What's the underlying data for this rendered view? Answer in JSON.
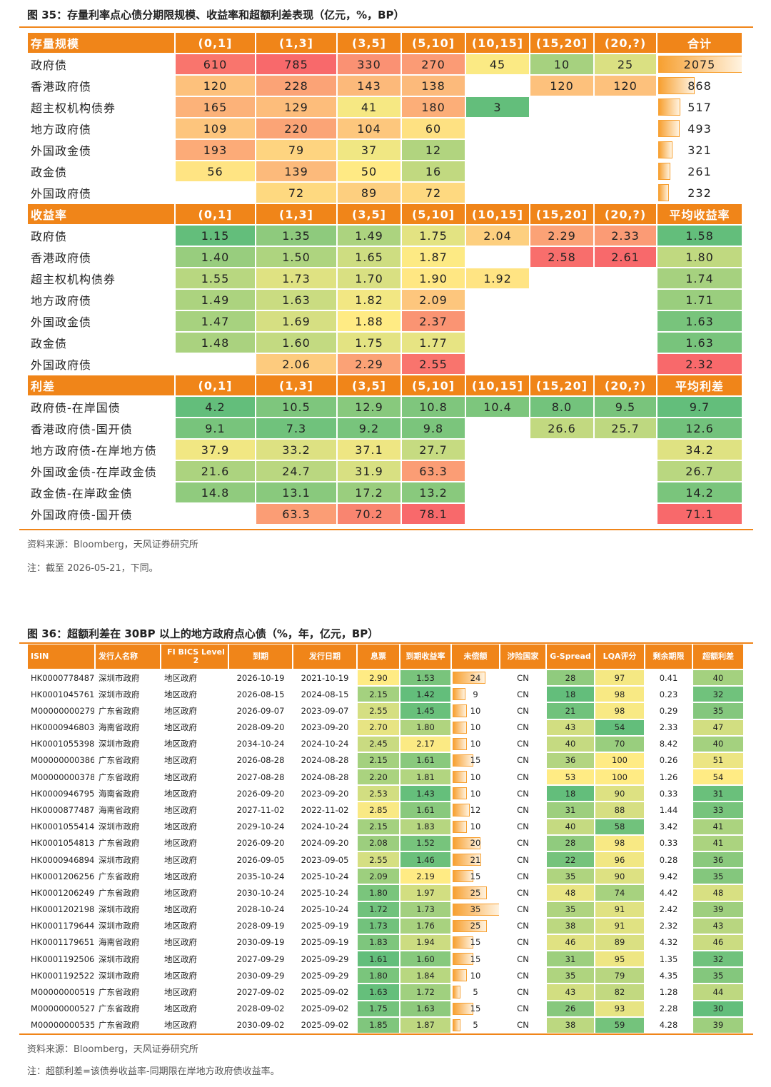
{
  "fig35": {
    "title": "图 35：存量利率点心债分期限规模、收益率和超额利差表现（亿元，%，BP）",
    "heat_colors": [
      "#63be7b",
      "#ffeb84",
      "#f8696b"
    ],
    "sections": [
      {
        "scale": "log",
        "total_style": "bar",
        "header": [
          "存量规模",
          "(0,1]",
          "(1,3]",
          "(3,5]",
          "(5,10]",
          "(10,15]",
          "(15,20]",
          "(20,?)",
          "合计"
        ],
        "rows": [
          [
            "政府债",
            "610",
            "785",
            "330",
            "270",
            "45",
            "10",
            "25",
            "2075"
          ],
          [
            "香港政府债",
            "120",
            "228",
            "143",
            "138",
            null,
            "120",
            "120",
            "868"
          ],
          [
            "超主权机构债券",
            "165",
            "129",
            "41",
            "180",
            "3",
            null,
            null,
            "517"
          ],
          [
            "地方政府债",
            "109",
            "220",
            "104",
            "60",
            null,
            null,
            null,
            "493"
          ],
          [
            "外国政金债",
            "193",
            "79",
            "37",
            "12",
            null,
            null,
            null,
            "321"
          ],
          [
            "政金债",
            "56",
            "139",
            "50",
            "16",
            null,
            null,
            null,
            "261"
          ],
          [
            "外国政府债",
            null,
            "72",
            "89",
            "72",
            null,
            null,
            null,
            "232"
          ]
        ]
      },
      {
        "scale": "linear",
        "total_style": "heat",
        "header": [
          "收益率",
          "(0,1]",
          "(1,3]",
          "(3,5]",
          "(5,10]",
          "(10,15]",
          "(15,20]",
          "(20,?)",
          "平均收益率"
        ],
        "rows": [
          [
            "政府债",
            "1.15",
            "1.35",
            "1.49",
            "1.75",
            "2.04",
            "2.29",
            "2.33",
            "1.58"
          ],
          [
            "香港政府债",
            "1.40",
            "1.50",
            "1.65",
            "1.87",
            null,
            "2.58",
            "2.61",
            "1.80"
          ],
          [
            "超主权机构债券",
            "1.55",
            "1.73",
            "1.70",
            "1.90",
            "1.92",
            null,
            null,
            "1.74"
          ],
          [
            "地方政府债",
            "1.49",
            "1.63",
            "1.82",
            "2.09",
            null,
            null,
            null,
            "1.71"
          ],
          [
            "外国政金债",
            "1.47",
            "1.69",
            "1.88",
            "2.37",
            null,
            null,
            null,
            "1.63"
          ],
          [
            "政金债",
            "1.48",
            "1.60",
            "1.75",
            "1.77",
            null,
            null,
            null,
            "1.63"
          ],
          [
            "外国政府债",
            null,
            "2.06",
            "2.29",
            "2.55",
            null,
            null,
            null,
            "2.32"
          ]
        ]
      },
      {
        "scale": "linear",
        "total_style": "heat",
        "header": [
          "利差",
          "(0,1]",
          "(1,3]",
          "(3,5]",
          "(5,10]",
          "(10,15]",
          "(15,20]",
          "(20,?)",
          "平均利差"
        ],
        "rows": [
          [
            "政府债-在岸国债",
            "4.2",
            "10.5",
            "12.9",
            "10.8",
            "10.4",
            "8.0",
            "9.5",
            "9.7"
          ],
          [
            "香港政府债-国开债",
            "9.1",
            "7.3",
            "9.2",
            "9.8",
            null,
            "26.6",
            "25.7",
            "12.6"
          ],
          [
            "地方政府债-在岸地方债",
            "37.9",
            "33.2",
            "37.1",
            "27.7",
            null,
            null,
            null,
            "34.2"
          ],
          [
            "外国政金债-在岸政金债",
            "21.6",
            "24.7",
            "31.9",
            "63.3",
            null,
            null,
            null,
            "26.7"
          ],
          [
            "政金债-在岸政金债",
            "14.8",
            "13.1",
            "17.2",
            "13.2",
            null,
            null,
            null,
            "14.2"
          ],
          [
            "外国政府债-国开债",
            null,
            "63.3",
            "70.2",
            "78.1",
            null,
            null,
            null,
            "71.1"
          ]
        ]
      }
    ],
    "source": "资料来源：Bloomberg，天风证券研究所",
    "note": "注：截至 2026-05-21，下同。"
  },
  "fig36": {
    "title": "图 36：超额利差在 30BP 以上的地方政府点心债（%，年，亿元，BP）",
    "heat_colors": [
      "#63be7b",
      "#ffeb84"
    ],
    "heat_columns": [
      5,
      6,
      9,
      10,
      12
    ],
    "bar_columns": [
      7
    ],
    "header": [
      "ISIN",
      "发行人名称",
      "FI BICS Level 2",
      "到期",
      "发行日期",
      "息票",
      "到期收益率",
      "未偿额",
      "涉险国家",
      "G-Spread",
      "LQA评分",
      "剩余期限",
      "超额利差"
    ],
    "rows": [
      [
        "HK0000778487",
        "深圳市政府",
        "地区政府",
        "2026-10-19",
        "2021-10-19",
        "2.90",
        "1.53",
        "24",
        "CN",
        "28",
        "97",
        "0.41",
        "40"
      ],
      [
        "HK0001045761",
        "深圳市政府",
        "地区政府",
        "2026-08-15",
        "2024-08-15",
        "2.15",
        "1.42",
        "9",
        "CN",
        "18",
        "98",
        "0.23",
        "32"
      ],
      [
        "M00000000279",
        "广东省政府",
        "地区政府",
        "2026-09-07",
        "2023-09-07",
        "2.55",
        "1.45",
        "10",
        "CN",
        "21",
        "98",
        "0.29",
        "35"
      ],
      [
        "HK0000946803",
        "海南省政府",
        "地区政府",
        "2028-09-20",
        "2023-09-20",
        "2.70",
        "1.80",
        "10",
        "CN",
        "43",
        "54",
        "2.33",
        "47"
      ],
      [
        "HK0001055398",
        "深圳市政府",
        "地区政府",
        "2034-10-24",
        "2024-10-24",
        "2.45",
        "2.17",
        "10",
        "CN",
        "40",
        "70",
        "8.42",
        "40"
      ],
      [
        "M00000000386",
        "广东省政府",
        "地区政府",
        "2026-08-28",
        "2024-08-28",
        "2.15",
        "1.61",
        "15",
        "CN",
        "36",
        "100",
        "0.26",
        "51"
      ],
      [
        "M00000000378",
        "广东省政府",
        "地区政府",
        "2027-08-28",
        "2024-08-28",
        "2.20",
        "1.81",
        "10",
        "CN",
        "53",
        "100",
        "1.26",
        "54"
      ],
      [
        "HK0000946795",
        "海南省政府",
        "地区政府",
        "2026-09-20",
        "2023-09-20",
        "2.53",
        "1.43",
        "10",
        "CN",
        "18",
        "90",
        "0.33",
        "31"
      ],
      [
        "HK0000877487",
        "海南省政府",
        "地区政府",
        "2027-11-02",
        "2022-11-02",
        "2.85",
        "1.61",
        "12",
        "CN",
        "31",
        "88",
        "1.44",
        "33"
      ],
      [
        "HK0001055414",
        "深圳市政府",
        "地区政府",
        "2029-10-24",
        "2024-10-24",
        "2.15",
        "1.83",
        "10",
        "CN",
        "40",
        "58",
        "3.42",
        "41"
      ],
      [
        "HK0001054813",
        "广东省政府",
        "地区政府",
        "2026-09-20",
        "2024-09-20",
        "2.08",
        "1.52",
        "20",
        "CN",
        "28",
        "98",
        "0.33",
        "41"
      ],
      [
        "HK0000946894",
        "深圳市政府",
        "地区政府",
        "2026-09-05",
        "2023-09-05",
        "2.55",
        "1.46",
        "21",
        "CN",
        "22",
        "96",
        "0.28",
        "36"
      ],
      [
        "HK0001206256",
        "广东省政府",
        "地区政府",
        "2035-10-24",
        "2025-10-24",
        "2.09",
        "2.19",
        "15",
        "CN",
        "35",
        "90",
        "9.42",
        "35"
      ],
      [
        "HK0001206249",
        "广东省政府",
        "地区政府",
        "2030-10-24",
        "2025-10-24",
        "1.80",
        "1.97",
        "25",
        "CN",
        "48",
        "74",
        "4.42",
        "48"
      ],
      [
        "HK0001202198",
        "深圳市政府",
        "地区政府",
        "2028-10-24",
        "2025-10-24",
        "1.72",
        "1.73",
        "35",
        "CN",
        "35",
        "91",
        "2.42",
        "39"
      ],
      [
        "HK0001179644",
        "深圳市政府",
        "地区政府",
        "2028-09-19",
        "2025-09-19",
        "1.73",
        "1.76",
        "25",
        "CN",
        "38",
        "91",
        "2.32",
        "43"
      ],
      [
        "HK0001179651",
        "海南省政府",
        "地区政府",
        "2030-09-19",
        "2025-09-19",
        "1.83",
        "1.94",
        "15",
        "CN",
        "46",
        "89",
        "4.32",
        "46"
      ],
      [
        "HK0001192506",
        "深圳市政府",
        "地区政府",
        "2027-09-29",
        "2025-09-29",
        "1.61",
        "1.60",
        "15",
        "CN",
        "31",
        "95",
        "1.35",
        "32"
      ],
      [
        "HK0001192522",
        "深圳市政府",
        "地区政府",
        "2030-09-29",
        "2025-09-29",
        "1.80",
        "1.84",
        "10",
        "CN",
        "35",
        "79",
        "4.35",
        "35"
      ],
      [
        "M00000000519",
        "广东省政府",
        "地区政府",
        "2027-09-02",
        "2025-09-02",
        "1.63",
        "1.72",
        "5",
        "CN",
        "43",
        "82",
        "1.28",
        "44"
      ],
      [
        "M00000000527",
        "广东省政府",
        "地区政府",
        "2028-09-02",
        "2025-09-02",
        "1.75",
        "1.63",
        "15",
        "CN",
        "26",
        "93",
        "2.28",
        "30"
      ],
      [
        "M00000000535",
        "广东省政府",
        "地区政府",
        "2030-09-02",
        "2025-09-02",
        "1.85",
        "1.87",
        "5",
        "CN",
        "38",
        "59",
        "4.28",
        "39"
      ]
    ],
    "source": "资料来源：Bloomberg，天风证券研究所",
    "note": "注：超额利差=该债券收益率-同期限在岸地方政府债收益率。"
  }
}
